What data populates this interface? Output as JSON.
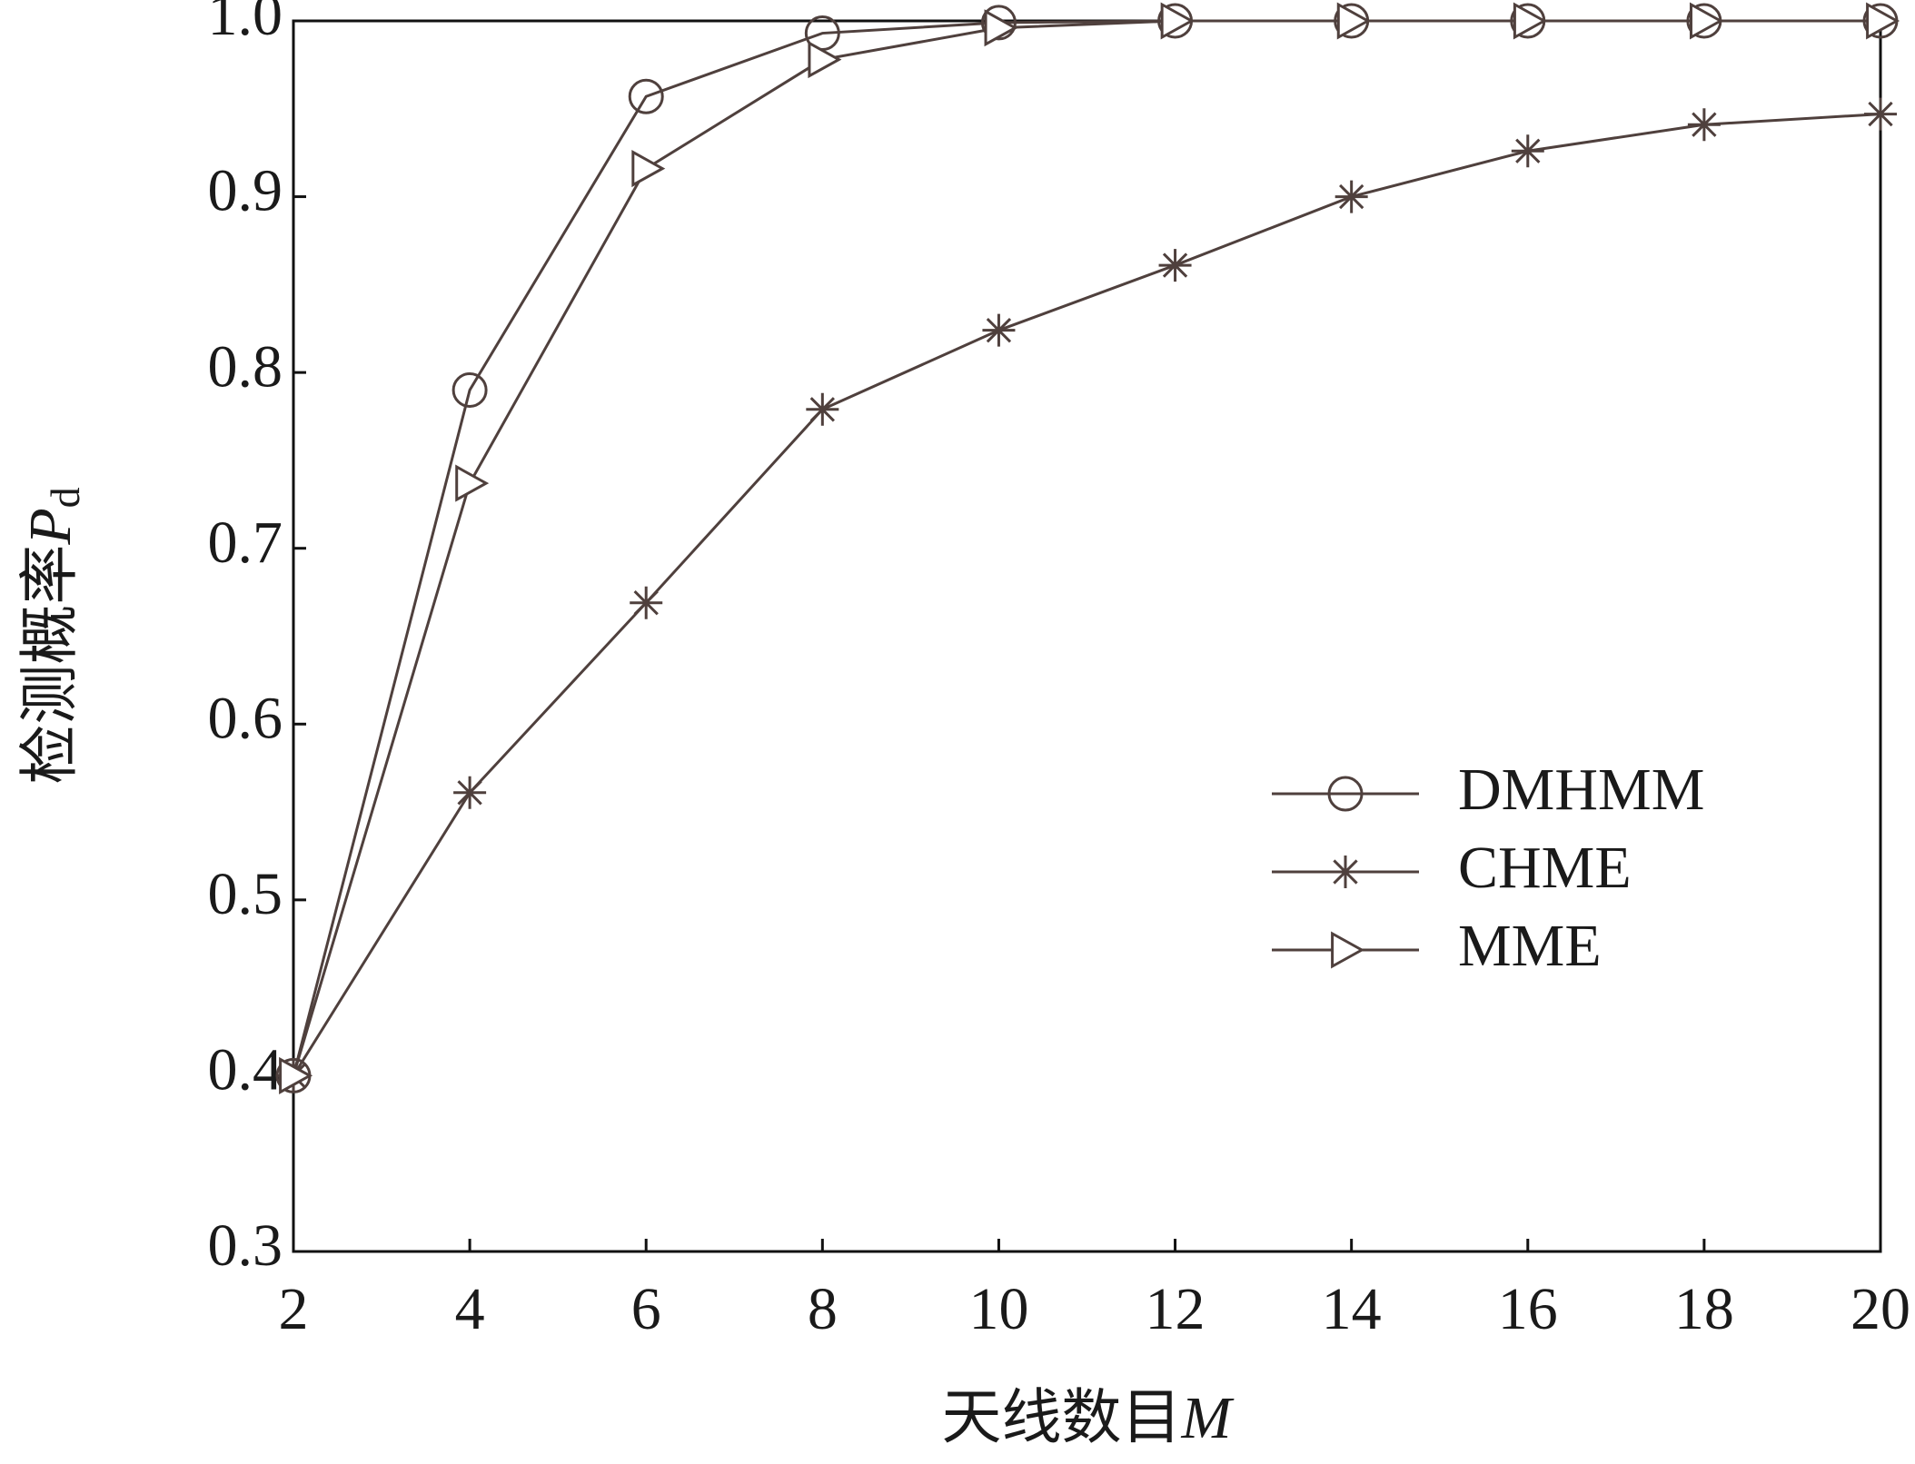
{
  "chart_data": {
    "type": "line",
    "ylabel": {
      "text": "检测概率",
      "symbol": "P",
      "subscript": "d"
    },
    "xlabel": {
      "text": "天线数目",
      "symbol": "M"
    },
    "x": [
      2,
      4,
      6,
      8,
      10,
      12,
      14,
      16,
      18,
      20
    ],
    "series": [
      {
        "name": "DMHMM",
        "color": "#4f403d",
        "marker": "circle",
        "values": [
          0.4,
          0.79,
          0.957,
          0.993,
          0.999,
          1.0,
          1.0,
          1.0,
          1.0,
          1.0
        ]
      },
      {
        "name": "CHME",
        "color": "#4f403d",
        "marker": "star",
        "values": [
          0.4,
          0.561,
          0.669,
          0.779,
          0.824,
          0.861,
          0.9,
          0.926,
          0.941,
          0.947
        ]
      },
      {
        "name": "MME",
        "color": "#4f403d",
        "marker": "triangle-right",
        "values": [
          0.4,
          0.737,
          0.916,
          0.978,
          0.996,
          1.0,
          1.0,
          1.0,
          1.0,
          1.0
        ]
      }
    ],
    "xlim": [
      2,
      20
    ],
    "ylim": [
      0.3,
      1
    ],
    "xticks": [
      2,
      4,
      6,
      8,
      10,
      12,
      14,
      16,
      18,
      20
    ],
    "yticks": [
      0.3,
      0.4,
      0.5,
      0.6,
      0.7,
      0.8,
      0.9,
      {
        "value": 1,
        "label": "1.0"
      }
    ],
    "legend": "center-right",
    "grid": false
  }
}
